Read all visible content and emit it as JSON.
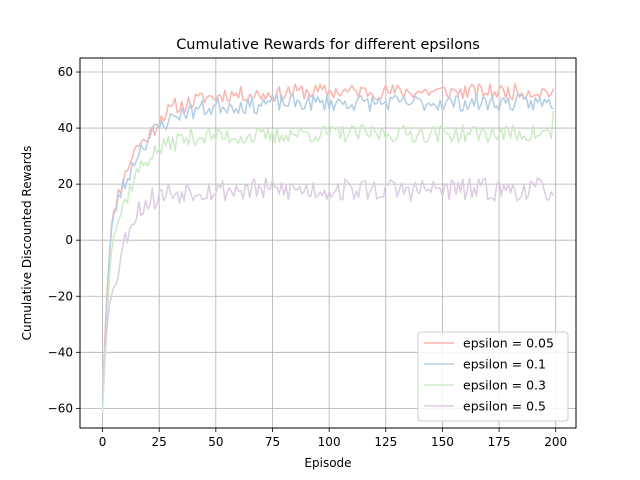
{
  "chart_data": {
    "type": "line",
    "title": "Cumulative Rewards for different epsilons",
    "xlabel": "Episode",
    "ylabel": "Cumulative Discounted Rewards",
    "xlim": [
      -9.95,
      208.95
    ],
    "ylim": [
      -67,
      65
    ],
    "xticks": [
      0,
      25,
      50,
      75,
      100,
      125,
      150,
      175,
      200
    ],
    "yticks": [
      -60,
      -40,
      -20,
      0,
      20,
      40,
      60
    ],
    "grid": true,
    "legend_position": "lower-right",
    "episodes": 200,
    "series": [
      {
        "name": "epsilon = 0.05",
        "color": "#fbb4ae",
        "values": [
          -55,
          -35,
          -18,
          -5,
          5,
          10,
          14,
          17,
          19,
          21,
          23,
          26,
          28,
          30,
          32,
          33,
          34,
          35,
          35,
          36,
          37,
          38,
          39,
          40,
          41,
          43,
          44,
          45,
          45,
          46,
          46,
          47,
          48,
          48,
          47,
          48,
          48,
          49,
          49,
          49,
          49,
          50,
          50,
          50,
          51,
          51,
          51,
          51,
          51,
          51,
          51,
          51,
          52,
          52,
          52,
          52,
          52,
          52,
          52,
          52,
          52,
          52,
          52,
          52,
          52,
          52,
          52,
          52,
          52,
          52,
          52,
          52,
          52,
          52,
          52,
          52,
          52,
          52,
          52,
          52,
          52,
          53,
          53,
          53,
          53,
          53,
          53,
          53,
          53,
          53,
          53,
          53,
          53,
          53,
          53,
          53,
          53,
          53,
          53,
          53,
          53,
          53,
          53,
          53,
          53,
          53,
          53,
          53,
          53,
          53,
          53,
          53,
          53,
          53,
          53,
          53,
          53,
          53,
          53,
          53,
          53,
          53,
          53,
          53,
          53,
          53,
          53,
          53,
          53,
          53,
          53,
          53,
          53,
          53,
          53,
          53,
          53,
          53,
          53,
          53,
          53,
          53,
          53,
          53,
          53,
          53,
          53,
          53,
          53,
          53,
          53,
          53,
          53,
          53,
          53,
          53,
          53,
          53,
          53,
          53,
          53,
          53,
          53,
          53,
          53,
          53,
          53,
          53,
          53,
          53,
          53,
          53,
          53,
          53,
          53,
          53,
          53,
          53,
          53,
          53,
          53,
          53,
          53,
          53,
          53,
          53,
          53,
          53,
          53,
          53,
          53,
          53,
          53,
          53,
          53,
          53,
          53,
          53,
          53,
          53
        ],
        "noise": 2.8,
        "seed": 11
      },
      {
        "name": "epsilon = 0.1",
        "color": "#b3cde3",
        "values": [
          -58,
          -40,
          -22,
          -6,
          4,
          9,
          12,
          15,
          17,
          19,
          20,
          22,
          24,
          26,
          28,
          30,
          32,
          33,
          34,
          35,
          36,
          37,
          38,
          39,
          40,
          40,
          41,
          42,
          42,
          43,
          43,
          44,
          44,
          45,
          45,
          45,
          46,
          46,
          46,
          46,
          46,
          47,
          47,
          47,
          47,
          47,
          47,
          47,
          47,
          47,
          48,
          48,
          48,
          48,
          48,
          48,
          48,
          48,
          48,
          48,
          48,
          48,
          48,
          48,
          48,
          48,
          48,
          48,
          48,
          48,
          49,
          49,
          49,
          49,
          49,
          49,
          49,
          49,
          49,
          49,
          49,
          49,
          49,
          49,
          49,
          49,
          49,
          49,
          49,
          49,
          49,
          49,
          49,
          49,
          49,
          49,
          49,
          49,
          49,
          49,
          49,
          49,
          49,
          49,
          49,
          49,
          49,
          49,
          49,
          49,
          49,
          49,
          49,
          49,
          49,
          49,
          49,
          49,
          49,
          49,
          49,
          49,
          49,
          49,
          49,
          49,
          49,
          49,
          49,
          49,
          49,
          49,
          49,
          49,
          49,
          49,
          49,
          49,
          49,
          49,
          49,
          49,
          49,
          49,
          49,
          49,
          49,
          49,
          49,
          49,
          49,
          49,
          49,
          49,
          49,
          49,
          49,
          49,
          49,
          49,
          49,
          49,
          49,
          49,
          49,
          49,
          49,
          49,
          49,
          49,
          49,
          49,
          49,
          49,
          49,
          49,
          49,
          49,
          49,
          49,
          49,
          49,
          49,
          49,
          49,
          49,
          49,
          49,
          49,
          49,
          49,
          49,
          49,
          49,
          49,
          49,
          49,
          49,
          49,
          49
        ],
        "noise": 3.0,
        "seed": 23
      },
      {
        "name": "epsilon = 0.3",
        "color": "#ccebc5",
        "values": [
          -61,
          -45,
          -28,
          -12,
          -3,
          2,
          5,
          7,
          10,
          12,
          14,
          16,
          18,
          20,
          22,
          24,
          25,
          26,
          27,
          28,
          29,
          30,
          31,
          31,
          32,
          32,
          33,
          33,
          34,
          34,
          35,
          35,
          35,
          36,
          36,
          36,
          36,
          36,
          36,
          37,
          37,
          37,
          37,
          37,
          37,
          37,
          37,
          37,
          37,
          37,
          37,
          37,
          37,
          37,
          37,
          37,
          37,
          37,
          37,
          37,
          37,
          37,
          37,
          37,
          37,
          37,
          37,
          37,
          37,
          37,
          37,
          37,
          37,
          37,
          37,
          37,
          37,
          37,
          37,
          37,
          38,
          38,
          38,
          38,
          38,
          38,
          38,
          38,
          38,
          38,
          38,
          38,
          38,
          38,
          38,
          38,
          38,
          38,
          38,
          38,
          38,
          38,
          38,
          38,
          38,
          38,
          38,
          38,
          38,
          38,
          38,
          38,
          38,
          38,
          38,
          38,
          38,
          38,
          38,
          38,
          38,
          38,
          38,
          38,
          38,
          38,
          38,
          38,
          38,
          38,
          38,
          38,
          38,
          38,
          38,
          38,
          38,
          38,
          38,
          38,
          38,
          38,
          38,
          38,
          38,
          38,
          38,
          38,
          38,
          38,
          38,
          38,
          38,
          38,
          38,
          38,
          38,
          38,
          38,
          38,
          38,
          38,
          38,
          38,
          38,
          38,
          38,
          38,
          38,
          38,
          38,
          38,
          38,
          38,
          38,
          38,
          38,
          38,
          38,
          38,
          38,
          38,
          38,
          38,
          38,
          38,
          38,
          38,
          38,
          38,
          38,
          38,
          38,
          38,
          38,
          38,
          38,
          38,
          38,
          45
        ],
        "noise": 3.2,
        "seed": 37
      },
      {
        "name": "epsilon = 0.5",
        "color": "#decbe4",
        "values": [
          -50,
          -38,
          -30,
          -24,
          -20,
          -16,
          -13,
          -10,
          -6,
          -3,
          0,
          3,
          5,
          7,
          9,
          10,
          11,
          12,
          12,
          13,
          14,
          14,
          15,
          15,
          15,
          16,
          16,
          16,
          17,
          17,
          17,
          17,
          17,
          17,
          17,
          17,
          18,
          18,
          18,
          18,
          18,
          18,
          18,
          18,
          18,
          18,
          18,
          18,
          18,
          18,
          18,
          18,
          18,
          18,
          18,
          18,
          18,
          18,
          18,
          18,
          18,
          18,
          18,
          18,
          18,
          18,
          18,
          18,
          18,
          18,
          18,
          18,
          18,
          18,
          18,
          18,
          18,
          18,
          18,
          18,
          18,
          18,
          18,
          18,
          18,
          18,
          18,
          18,
          18,
          18,
          18,
          18,
          18,
          18,
          18,
          18,
          18,
          18,
          18,
          18,
          18,
          18,
          18,
          18,
          18,
          18,
          18,
          18,
          18,
          18,
          18,
          18,
          18,
          18,
          18,
          18,
          18,
          18,
          18,
          18,
          18,
          18,
          18,
          18,
          18,
          18,
          18,
          18,
          18,
          18,
          18,
          18,
          18,
          18,
          18,
          18,
          18,
          18,
          18,
          18,
          18,
          18,
          18,
          18,
          18,
          18,
          18,
          18,
          18,
          18,
          18,
          18,
          18,
          18,
          18,
          18,
          18,
          18,
          18,
          18,
          18,
          18,
          18,
          18,
          18,
          18,
          18,
          18,
          18,
          18,
          18,
          18,
          18,
          18,
          18,
          18,
          18,
          18,
          18,
          18,
          18,
          18,
          18,
          18,
          18,
          18,
          18,
          18,
          18,
          18,
          18,
          18,
          18,
          18,
          18,
          18,
          18,
          18,
          18,
          18
        ],
        "noise": 4.2,
        "seed": 53
      }
    ]
  }
}
